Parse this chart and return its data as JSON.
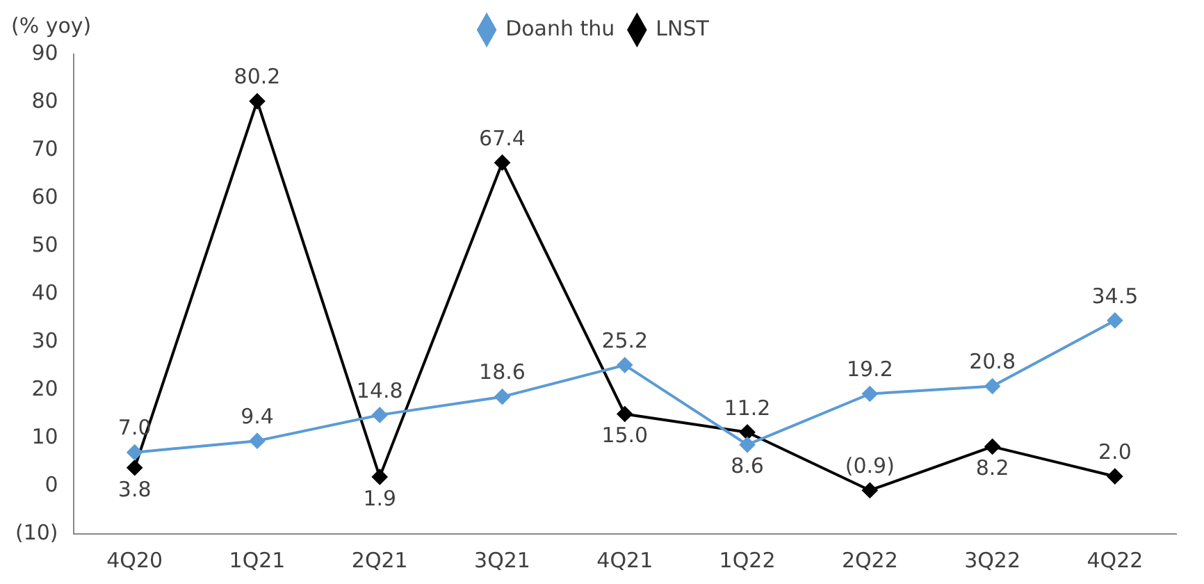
{
  "chart_data": {
    "type": "line",
    "ylabel": "(% yoy)",
    "categories": [
      "4Q20",
      "1Q21",
      "2Q21",
      "3Q21",
      "4Q21",
      "1Q22",
      "2Q22",
      "3Q22",
      "4Q22"
    ],
    "series": [
      {
        "name": "Doanh thu",
        "color": "#5b9bd5",
        "values": [
          7.0,
          9.4,
          14.8,
          18.6,
          25.2,
          8.6,
          19.2,
          20.8,
          34.5
        ],
        "value_labels": [
          "7.0",
          "9.4",
          "14.8",
          "18.6",
          "25.2",
          "8.6",
          "19.2",
          "20.8",
          "34.5"
        ]
      },
      {
        "name": "LNST",
        "color": "#000000",
        "values": [
          3.8,
          80.2,
          1.9,
          67.4,
          15.0,
          11.2,
          -0.9,
          8.2,
          2.0
        ],
        "value_labels": [
          "3.8",
          "80.2",
          "1.9",
          "67.4",
          "15.0",
          "11.2",
          "(0.9)",
          "8.2",
          "2.0"
        ]
      }
    ],
    "ylim": [
      -10,
      90
    ],
    "yticks": [
      {
        "value": -10,
        "label": "(10)"
      },
      0,
      10,
      20,
      30,
      40,
      50,
      60,
      70,
      80,
      90
    ],
    "grid": false,
    "legend": "top",
    "marker": "diamond",
    "line_style": "solid"
  }
}
